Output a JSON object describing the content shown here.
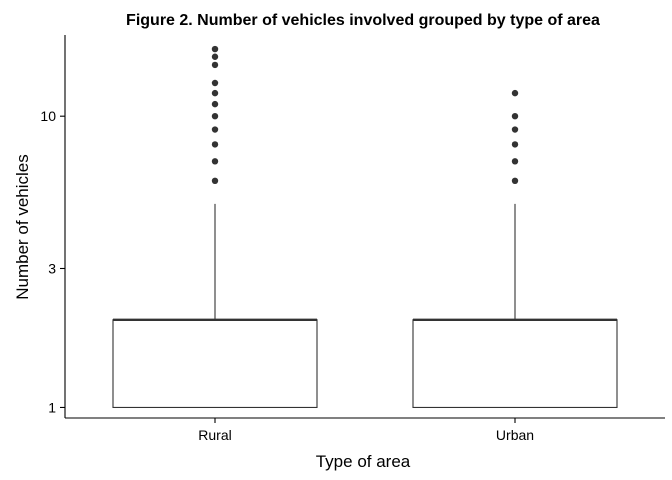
{
  "chart_data": {
    "type": "boxplot",
    "title": "Figure 2. Number of vehicles involved grouped by type of area",
    "xlabel": "Type of area",
    "ylabel": "Number of vehicles",
    "y_scale": "log10",
    "ylim": [
      0.92,
      19
    ],
    "y_ticks": [
      1,
      3,
      10
    ],
    "y_tick_labels": [
      "1",
      "3",
      "10"
    ],
    "categories": [
      "Rural",
      "Urban"
    ],
    "boxes": [
      {
        "name": "Rural",
        "min": 1,
        "q1": 1,
        "median": 2,
        "q3": 2,
        "max": 5,
        "outliers": [
          6,
          7,
          8,
          9,
          10,
          11,
          12,
          13,
          15,
          16,
          17
        ]
      },
      {
        "name": "Urban",
        "min": 1,
        "q1": 1,
        "median": 2,
        "q3": 2,
        "max": 5,
        "outliers": [
          6,
          7,
          8,
          9,
          10,
          12
        ]
      }
    ],
    "colors": {
      "box_fill": "#ffffff",
      "line": "#333333",
      "outlier": "#333333",
      "axis": "#000000"
    }
  }
}
